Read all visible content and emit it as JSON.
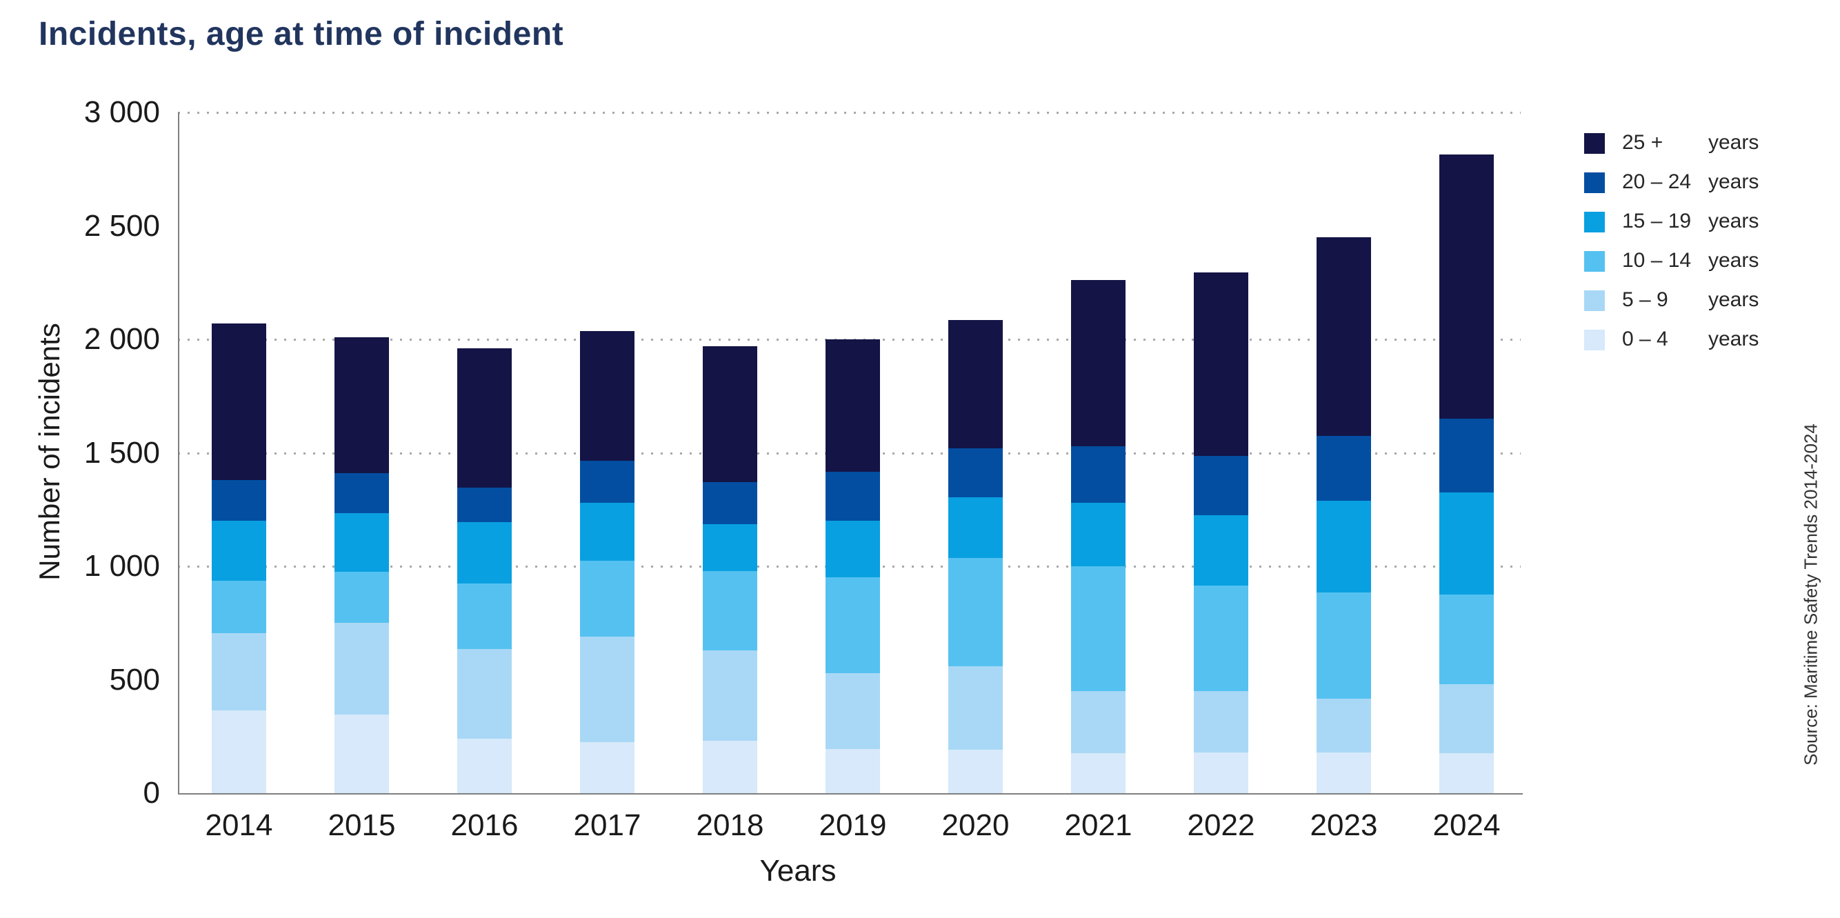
{
  "title": "Incidents, age at time of incident",
  "y_axis": {
    "label": "Number of incidents",
    "ticks": [
      "3 000",
      "2 500",
      "2 000",
      "1 500",
      "1 000",
      "500",
      "0"
    ]
  },
  "x_axis": {
    "label": "Years"
  },
  "source": "Source: Maritime Safety Trends 2014-2024",
  "legend": [
    {
      "range": "25 +",
      "unit": "years",
      "color": "#141446"
    },
    {
      "range": "20 – 24",
      "unit": "years",
      "color": "#034EA1"
    },
    {
      "range": "15 – 19",
      "unit": "years",
      "color": "#09A0E1"
    },
    {
      "range": "10 – 14",
      "unit": "years",
      "color": "#55C1F0"
    },
    {
      "range": "5 – 9",
      "unit": "years",
      "color": "#A8D8F6"
    },
    {
      "range": "0 – 4",
      "unit": "years",
      "color": "#D7E9FA"
    }
  ],
  "chart_data": {
    "type": "bar",
    "stacked": true,
    "title": "Incidents, age at time of incident",
    "xlabel": "Years",
    "ylabel": "Number of incidents",
    "ylim": [
      0,
      3000
    ],
    "gridlines_at": [
      1000,
      1500,
      2000,
      3000
    ],
    "grid_style": "dotted",
    "legend_position": "right",
    "categories": [
      "2014",
      "2015",
      "2016",
      "2017",
      "2018",
      "2019",
      "2020",
      "2021",
      "2022",
      "2023",
      "2024"
    ],
    "series": [
      {
        "name": "0 – 4 years",
        "color": "#D7E9FA",
        "values": [
          365,
          345,
          240,
          225,
          230,
          195,
          190,
          175,
          180,
          180,
          175
        ]
      },
      {
        "name": "5 – 9 years",
        "color": "#A8D8F6",
        "values": [
          340,
          405,
          395,
          465,
          400,
          335,
          370,
          275,
          270,
          235,
          305
        ]
      },
      {
        "name": "10 – 14 years",
        "color": "#55C1F0",
        "values": [
          230,
          225,
          290,
          335,
          350,
          420,
          475,
          550,
          465,
          470,
          395
        ]
      },
      {
        "name": "15 – 19 years",
        "color": "#09A0E1",
        "values": [
          265,
          260,
          270,
          255,
          205,
          250,
          270,
          280,
          310,
          405,
          450
        ]
      },
      {
        "name": "20 – 24 years",
        "color": "#034EA1",
        "values": [
          180,
          175,
          150,
          185,
          185,
          215,
          215,
          250,
          260,
          285,
          325
        ]
      },
      {
        "name": "25 + years",
        "color": "#141446",
        "values": [
          690,
          600,
          615,
          570,
          600,
          585,
          565,
          730,
          810,
          875,
          1165
        ]
      }
    ],
    "totals": [
      2070,
      2010,
      1960,
      2035,
      1970,
      2000,
      2085,
      2260,
      2295,
      2450,
      2815
    ]
  }
}
